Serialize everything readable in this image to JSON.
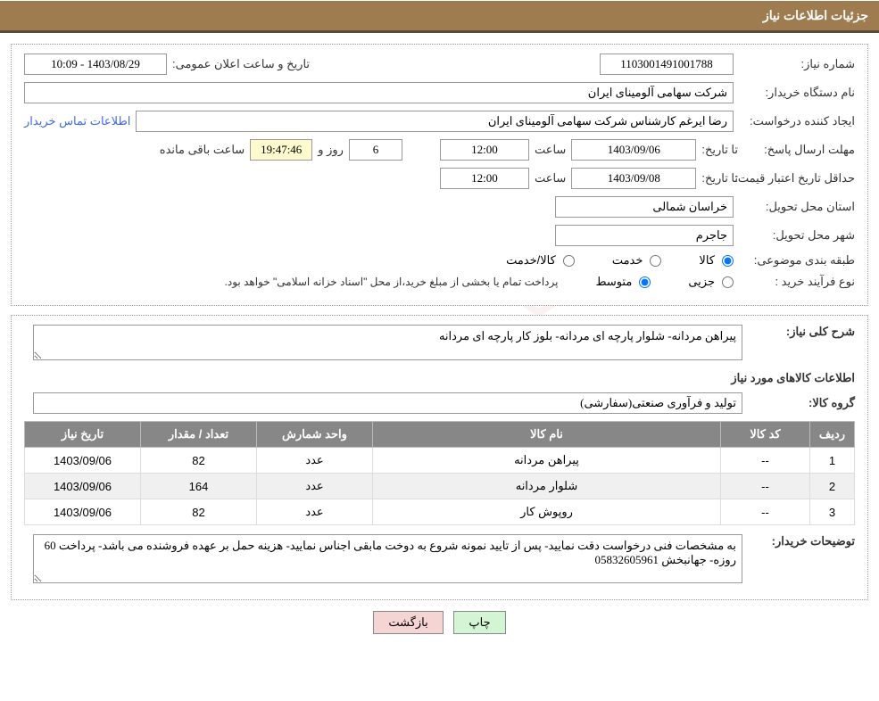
{
  "header": {
    "title": "جزئیات اطلاعات نیاز"
  },
  "fields": {
    "need_number_label": "شماره نیاز:",
    "need_number": "1103001491001788",
    "announce_date_label": "تاریخ و ساعت اعلان عمومی:",
    "announce_date": "1403/08/29 - 10:09",
    "buyer_org_label": "نام دستگاه خریدار:",
    "buyer_org": "شرکت سهامی آلومینای ایران",
    "requester_label": "ایجاد کننده درخواست:",
    "requester": "رضا ایرغم کارشناس شرکت سهامی آلومینای ایران",
    "buyer_contact_link": "اطلاعات تماس خریدار",
    "deadline_label": "مهلت ارسال پاسخ:",
    "until_date_label": "تا تاریخ:",
    "deadline_date": "1403/09/06",
    "hour_label": "ساعت",
    "deadline_time": "12:00",
    "days_remain": "6",
    "day_and_label": "روز و",
    "time_remain": "19:47:46",
    "hours_remain_label": "ساعت باقی مانده",
    "price_validity_label": "حداقل تاریخ اعتبار قیمت:",
    "price_validity_date": "1403/09/08",
    "price_validity_time": "12:00",
    "delivery_province_label": "استان محل تحویل:",
    "delivery_province": "خراسان شمالی",
    "delivery_city_label": "شهر محل تحویل:",
    "delivery_city": "جاجرم",
    "category_label": "طبقه بندی موضوعی:",
    "cat_goods": "کالا",
    "cat_service": "خدمت",
    "cat_goods_service": "کالا/خدمت",
    "purchase_type_label": "نوع فرآیند خرید :",
    "pt_minor": "جزیی",
    "pt_medium": "متوسط",
    "payment_note": "پرداخت تمام یا بخشی از مبلغ خرید،از محل \"اسناد خزانه اسلامی\" خواهد بود.",
    "general_desc_label": "شرح کلی نیاز:",
    "general_desc": "پیراهن مردانه- شلوار پارچه ای مردانه- بلوز کار پارچه ای مردانه",
    "goods_info_title": "اطلاعات کالاهای مورد نیاز",
    "goods_group_label": "گروه کالا:",
    "goods_group": "تولید و فرآوری صنعتی(سفارشی)",
    "buyer_notes_label": "توضیحات خریدار:",
    "buyer_notes": "به مشخصات فنی درخواست دقت نمایید- پس از تایید نمونه شروع به دوخت مابقی اجناس نمایید- هزینه حمل بر عهده فروشنده می باشد- پرداخت 60 روزه- جهانبخش 05832605961"
  },
  "table": {
    "headers": {
      "row": "ردیف",
      "code": "کد کالا",
      "name": "نام کالا",
      "unit": "واحد شمارش",
      "qty": "تعداد / مقدار",
      "date": "تاریخ نیاز"
    },
    "rows": [
      {
        "row": "1",
        "code": "--",
        "name": "پیراهن مردانه",
        "unit": "عدد",
        "qty": "82",
        "date": "1403/09/06"
      },
      {
        "row": "2",
        "code": "--",
        "name": "شلوار مردانه",
        "unit": "عدد",
        "qty": "164",
        "date": "1403/09/06"
      },
      {
        "row": "3",
        "code": "--",
        "name": "روپوش کار",
        "unit": "عدد",
        "qty": "82",
        "date": "1403/09/06"
      }
    ]
  },
  "buttons": {
    "print": "چاپ",
    "back": "بازگشت"
  },
  "watermark": {
    "text": "AriaTender.net"
  },
  "colors": {
    "header_bg": "#9f7c50",
    "header_border": "#5a4a35",
    "th_bg": "#878787",
    "btn_print_bg": "#d4f5d4",
    "btn_back_bg": "#f5d4d4",
    "link": "#4169e1"
  }
}
